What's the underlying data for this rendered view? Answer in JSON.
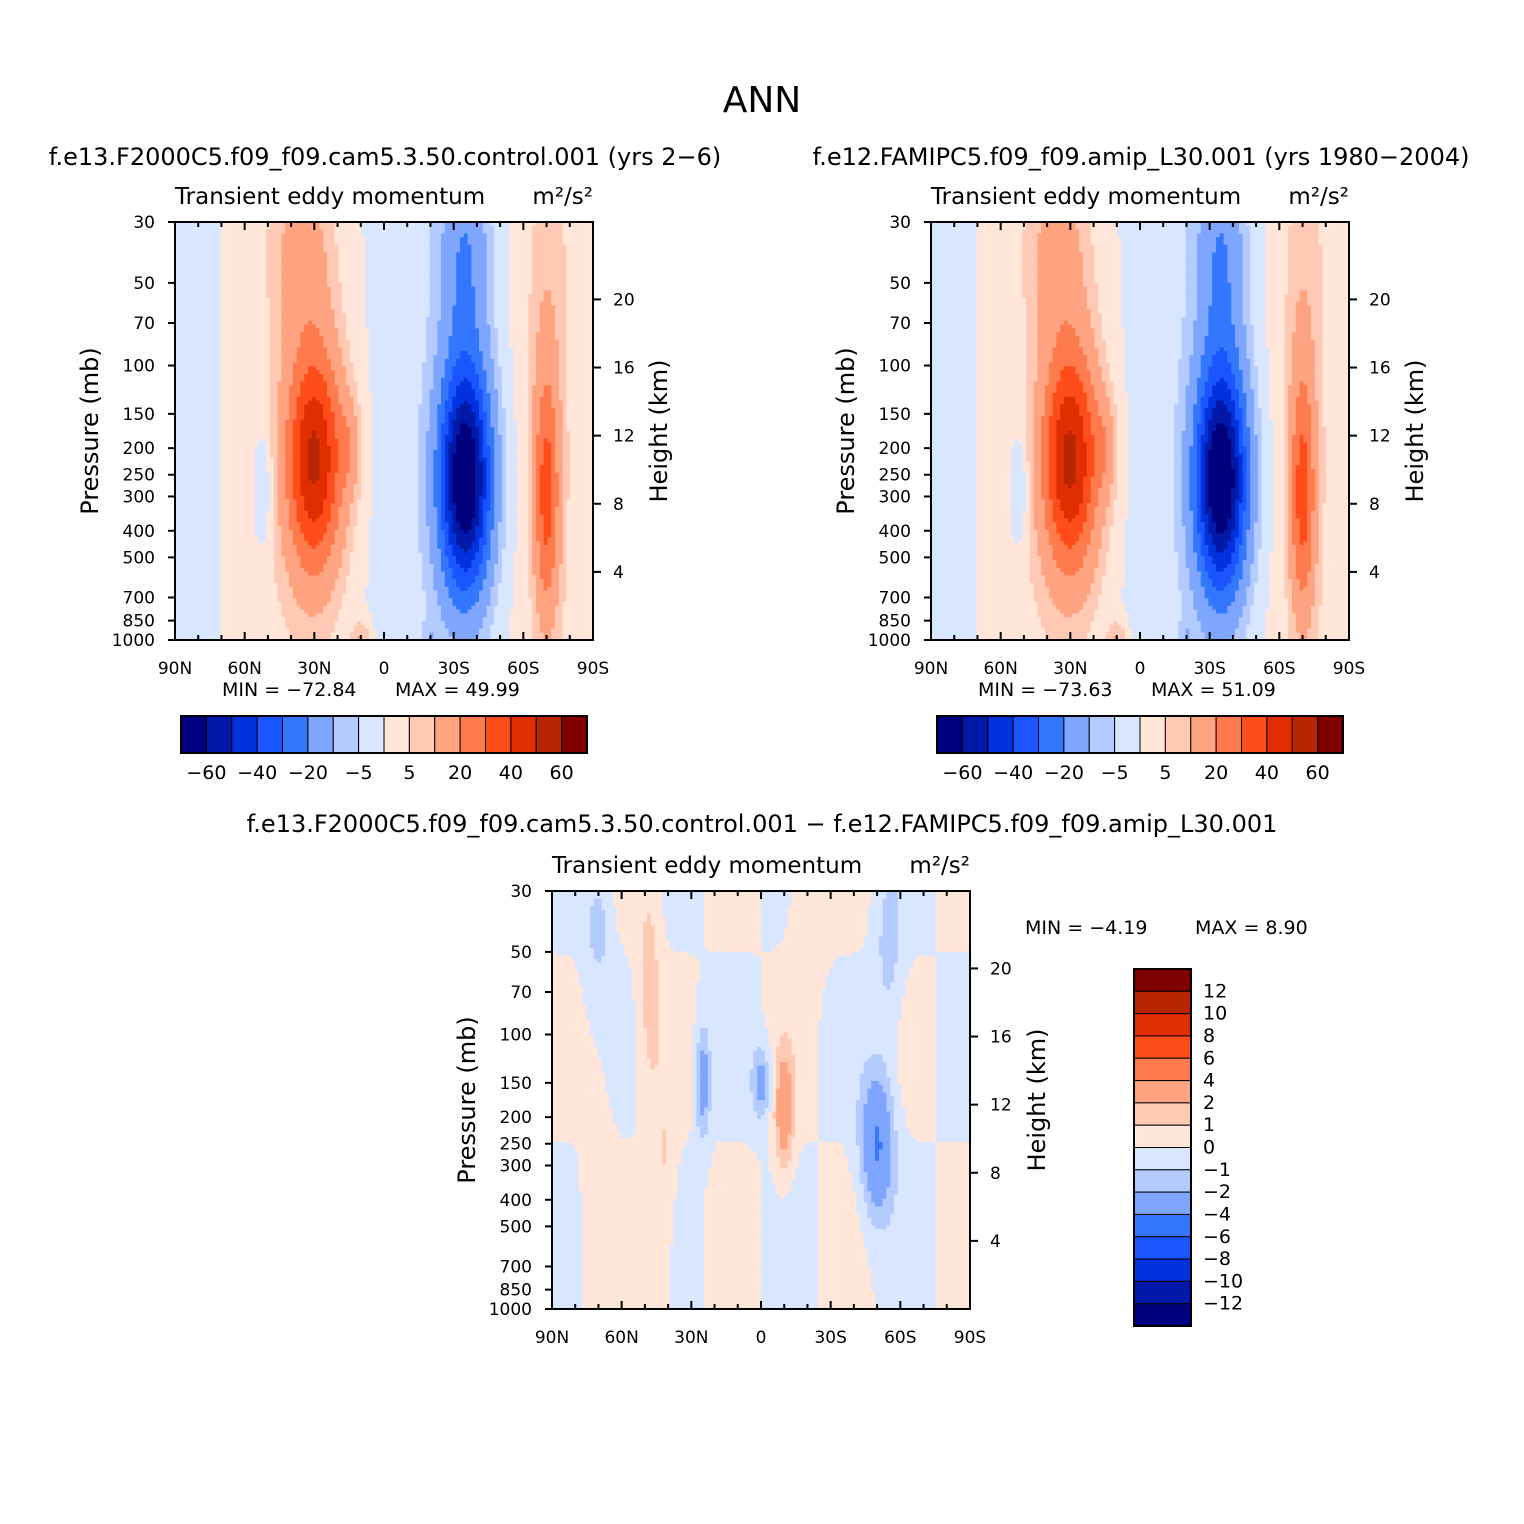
{
  "title": "ANN",
  "colors": {
    "main": [
      "#00007f",
      "#0019a8",
      "#0033dd",
      "#1a55ff",
      "#3377ff",
      "#7fa6ff",
      "#b3cbff",
      "#d9e6ff",
      "#ffe6d9",
      "#ffc9b3",
      "#ffa380",
      "#ff7a4d",
      "#ff4d1a",
      "#e02e00",
      "#b82500",
      "#800000"
    ],
    "diff": [
      "#00007f",
      "#0019a8",
      "#0033dd",
      "#1a55ff",
      "#3377ff",
      "#7fa6ff",
      "#b3cbff",
      "#d9e6ff",
      "#ffe6d9",
      "#ffc9b3",
      "#ffa380",
      "#ff7a4d",
      "#ff4d1a",
      "#e02e00",
      "#b82500",
      "#800000"
    ]
  },
  "chart_data": [
    {
      "type": "heatmap",
      "title": "f.e13.F2000C5.f09_f09.cam5.3.50.control.001 (yrs 2−6)",
      "subtitle": "Transient eddy momentum",
      "units": "m²/s²",
      "xlabel": "",
      "ylabel": "Pressure (mb)",
      "ylabel_right": "Height (km)",
      "x_ticks": [
        "90N",
        "60N",
        "30N",
        "0",
        "30S",
        "60S",
        "90S"
      ],
      "y_ticks": [
        "30",
        "50",
        "70",
        "100",
        "150",
        "200",
        "250",
        "300",
        "400",
        "500",
        "700",
        "850",
        "1000"
      ],
      "y_ticks_right": [
        "20",
        "16",
        "12",
        "8",
        "4"
      ],
      "min_label": "MIN = −72.84",
      "max_label": "MAX = 49.99",
      "min": -72.84,
      "max": 49.99,
      "legend_labels": [
        "−60",
        "−40",
        "−20",
        "−5",
        "5",
        "20",
        "40",
        "60"
      ],
      "features": [
        {
          "lat": -35,
          "p": 250,
          "value": -72.84
        },
        {
          "lat": 30,
          "p": 220,
          "value": 49.99
        },
        {
          "lat": -70,
          "p": 300,
          "value": 30
        }
      ]
    },
    {
      "type": "heatmap",
      "title": "f.e12.FAMIPC5.f09_f09.amip_L30.001 (yrs 1980−2004)",
      "subtitle": "Transient eddy momentum",
      "units": "m²/s²",
      "xlabel": "",
      "ylabel": "Pressure (mb)",
      "ylabel_right": "Height (km)",
      "x_ticks": [
        "90N",
        "60N",
        "30N",
        "0",
        "30S",
        "60S",
        "90S"
      ],
      "y_ticks": [
        "30",
        "50",
        "70",
        "100",
        "150",
        "200",
        "250",
        "300",
        "400",
        "500",
        "700",
        "850",
        "1000"
      ],
      "y_ticks_right": [
        "20",
        "16",
        "12",
        "8",
        "4"
      ],
      "min_label": "MIN = −73.63",
      "max_label": "MAX = 51.09",
      "min": -73.63,
      "max": 51.09,
      "legend_labels": [
        "−60",
        "−40",
        "−20",
        "−5",
        "5",
        "20",
        "40",
        "60"
      ],
      "features": [
        {
          "lat": -35,
          "p": 250,
          "value": -73.63
        },
        {
          "lat": 30,
          "p": 200,
          "value": 51.09
        },
        {
          "lat": -70,
          "p": 300,
          "value": 30
        }
      ]
    },
    {
      "type": "heatmap",
      "title": "f.e13.F2000C5.f09_f09.cam5.3.50.control.001 − f.e12.FAMIPC5.f09_f09.amip_L30.001",
      "subtitle": "Transient eddy momentum",
      "units": "m²/s²",
      "xlabel": "",
      "ylabel": "Pressure (mb)",
      "ylabel_right": "Height (km)",
      "x_ticks": [
        "90N",
        "60N",
        "30N",
        "0",
        "30S",
        "60S",
        "90S"
      ],
      "y_ticks": [
        "30",
        "50",
        "70",
        "100",
        "150",
        "200",
        "250",
        "300",
        "400",
        "500",
        "700",
        "850",
        "1000"
      ],
      "y_ticks_right": [
        "20",
        "16",
        "12",
        "8",
        "4"
      ],
      "min_label": "MIN = −4.19",
      "max_label": "MAX = 8.90",
      "min": -4.19,
      "max": 8.9,
      "legend_labels": [
        "12",
        "10",
        "8",
        "6",
        "4",
        "2",
        "1",
        "0",
        "−1",
        "−2",
        "−4",
        "−6",
        "−8",
        "−10",
        "−12"
      ],
      "features": [
        {
          "lat": -50,
          "p": 250,
          "value": -4.19
        },
        {
          "lat": -10,
          "p": 200,
          "value": 8.9
        },
        {
          "lat": 25,
          "p": 150,
          "value": -3
        },
        {
          "lat": 0,
          "p": 150,
          "value": -3
        }
      ]
    }
  ]
}
